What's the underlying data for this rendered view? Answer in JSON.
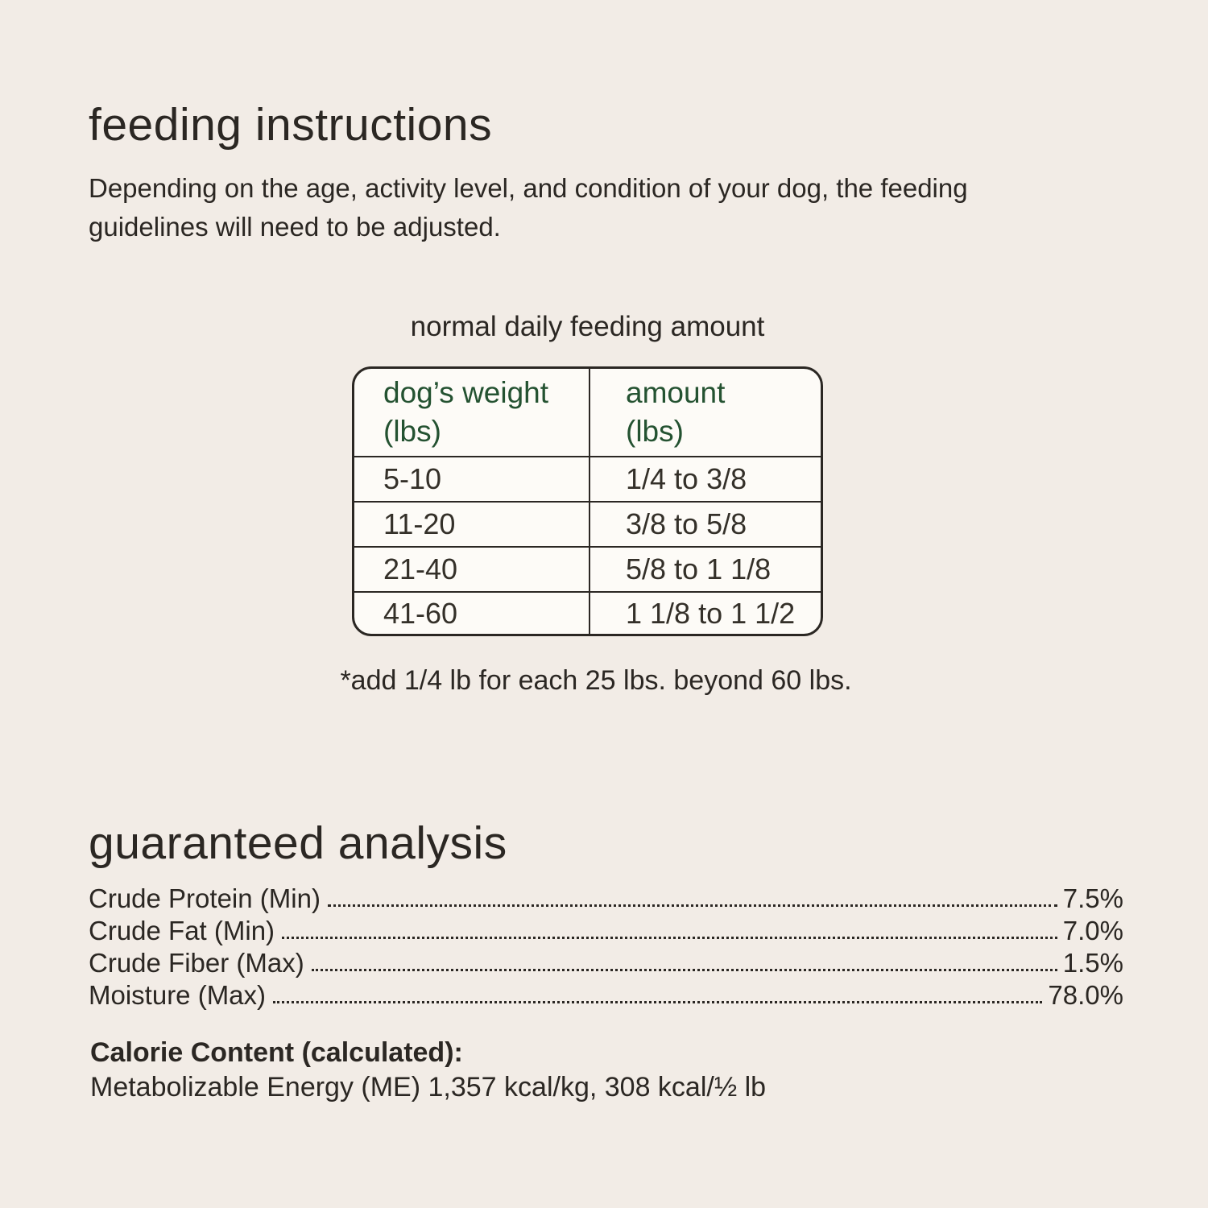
{
  "colors": {
    "background": "#f2ece6",
    "ink": "#2b2723",
    "accent_green": "#245231",
    "table_fill": "#fdfbf7"
  },
  "feeding": {
    "title": "feeding instructions",
    "description": "Depending on the age, activity level, and condition of your dog, the feeding\nguidelines will need to be adjusted.",
    "table_title": "normal daily feeding amount",
    "table": {
      "col1_header": "dog’s weight\n(lbs)",
      "col2_header": "amount\n(lbs)",
      "rows": [
        {
          "weight": "5-10",
          "amount": "1/4 to 3/8"
        },
        {
          "weight": "11-20",
          "amount": "3/8 to 5/8"
        },
        {
          "weight": "21-40",
          "amount": "5/8 to 1 1/8"
        },
        {
          "weight": "41-60",
          "amount": "1 1/8 to 1 1/2"
        }
      ]
    },
    "footnote": "*add 1/4 lb for each 25 lbs. beyond 60 lbs."
  },
  "analysis": {
    "title": "guaranteed analysis",
    "rows": [
      {
        "label": "Crude Protein (Min)",
        "value": "7.5%"
      },
      {
        "label": "Crude Fat (Min)",
        "value": "7.0%"
      },
      {
        "label": "Crude Fiber (Max)",
        "value": "1.5%"
      },
      {
        "label": "Moisture (Max)",
        "value": "78.0%"
      }
    ],
    "calorie_heading": "Calorie Content (calculated):",
    "calorie_detail": "Metabolizable Energy (ME) 1,357 kcal/kg, 308 kcal/½ lb"
  }
}
